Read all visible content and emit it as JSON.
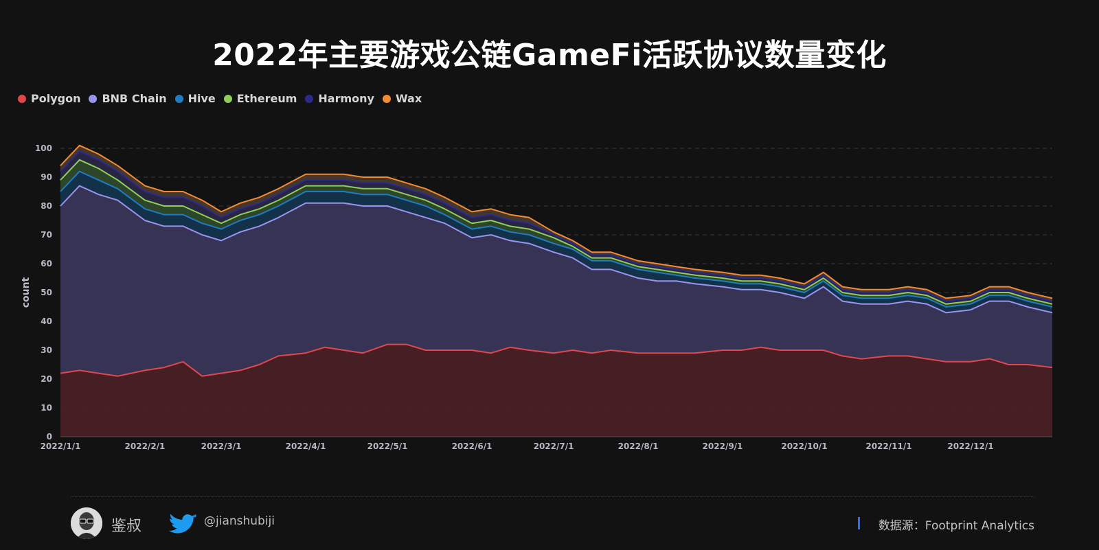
{
  "title": "2022年主要游戏公链GameFi活跃协议数量变化",
  "legend": [
    {
      "name": "Polygon",
      "color": "#e0484f"
    },
    {
      "name": "BNB Chain",
      "color": "#9b93f0"
    },
    {
      "name": "Hive",
      "color": "#1f7cc2"
    },
    {
      "name": "Ethereum",
      "color": "#8fce5a"
    },
    {
      "name": "Harmony",
      "color": "#2b2a8c"
    },
    {
      "name": "Wax",
      "color": "#f28b34"
    }
  ],
  "footer": {
    "author": "鉴叔",
    "author_icon": "avatar-icon",
    "twitter_icon": "twitter-icon",
    "twitter_handle": "@jianshubiji",
    "source": "数据源：Footprint  Analytics"
  },
  "chart_data": {
    "type": "area",
    "stacked": true,
    "title": "2022年主要游戏公链GameFi活跃协议数量变化",
    "xlabel": "",
    "ylabel": "count",
    "ylim": [
      0,
      100
    ],
    "yticks": [
      0,
      10,
      20,
      30,
      40,
      50,
      60,
      70,
      80,
      90,
      100
    ],
    "xticks": [
      "2022/1/1",
      "2022/2/1",
      "2022/3/1",
      "2022/4/1",
      "2022/5/1",
      "2022/6/1",
      "2022/7/1",
      "2022/8/1",
      "2022/9/1",
      "2022/10/1",
      "2022/11/1",
      "2022/12/1"
    ],
    "grid": true,
    "legend_position": "top-left",
    "x": [
      "2022/1/1",
      "2022/1/8",
      "2022/1/15",
      "2022/1/22",
      "2022/2/1",
      "2022/2/8",
      "2022/2/15",
      "2022/2/22",
      "2022/3/1",
      "2022/3/8",
      "2022/3/15",
      "2022/3/22",
      "2022/4/1",
      "2022/4/8",
      "2022/4/15",
      "2022/4/22",
      "2022/5/1",
      "2022/5/8",
      "2022/5/15",
      "2022/5/22",
      "2022/6/1",
      "2022/6/8",
      "2022/6/15",
      "2022/6/22",
      "2022/7/1",
      "2022/7/8",
      "2022/7/15",
      "2022/7/22",
      "2022/8/1",
      "2022/8/8",
      "2022/8/15",
      "2022/8/22",
      "2022/9/1",
      "2022/9/8",
      "2022/9/15",
      "2022/9/22",
      "2022/10/1",
      "2022/10/8",
      "2022/10/15",
      "2022/10/22",
      "2022/11/1",
      "2022/11/8",
      "2022/11/15",
      "2022/11/22",
      "2022/12/1",
      "2022/12/8",
      "2022/12/15",
      "2022/12/22",
      "2022/12/31"
    ],
    "series": [
      {
        "name": "Polygon",
        "values": [
          22,
          23,
          22,
          21,
          23,
          24,
          26,
          21,
          22,
          23,
          25,
          28,
          29,
          31,
          30,
          29,
          32,
          32,
          30,
          30,
          30,
          29,
          31,
          30,
          29,
          30,
          29,
          30,
          29,
          29,
          29,
          29,
          30,
          30,
          31,
          30,
          30,
          30,
          28,
          27,
          28,
          28,
          27,
          26,
          26,
          27,
          25,
          25,
          24
        ]
      },
      {
        "name": "BNB Chain",
        "values": [
          58,
          64,
          62,
          61,
          52,
          49,
          47,
          49,
          46,
          48,
          48,
          48,
          52,
          50,
          51,
          51,
          48,
          46,
          46,
          44,
          39,
          41,
          37,
          37,
          35,
          32,
          29,
          28,
          26,
          25,
          25,
          24,
          22,
          21,
          20,
          20,
          18,
          22,
          19,
          19,
          18,
          19,
          19,
          17,
          18,
          20,
          22,
          20,
          19
        ]
      },
      {
        "name": "Hive",
        "values": [
          5,
          5,
          5,
          4,
          4,
          4,
          4,
          4,
          4,
          4,
          4,
          4,
          4,
          4,
          4,
          4,
          4,
          4,
          4,
          3,
          3,
          3,
          3,
          3,
          3,
          3,
          3,
          3,
          3,
          3,
          2,
          2,
          2,
          2,
          2,
          2,
          2,
          2,
          2,
          2,
          2,
          2,
          2,
          2,
          2,
          2,
          2,
          2,
          2
        ]
      },
      {
        "name": "Ethereum",
        "values": [
          4,
          4,
          4,
          3,
          3,
          3,
          3,
          3,
          2,
          2,
          2,
          2,
          2,
          2,
          2,
          2,
          2,
          2,
          2,
          2,
          2,
          2,
          2,
          2,
          2,
          1,
          1,
          1,
          1,
          1,
          1,
          1,
          1,
          1,
          1,
          1,
          1,
          1,
          1,
          1,
          1,
          1,
          1,
          1,
          1,
          1,
          1,
          1,
          1
        ]
      },
      {
        "name": "Harmony",
        "values": [
          3,
          3,
          3,
          3,
          3,
          3,
          3,
          3,
          2,
          2,
          2,
          2,
          2,
          2,
          2,
          2,
          2,
          2,
          2,
          2,
          2,
          2,
          2,
          2,
          1,
          1,
          1,
          1,
          1,
          1,
          1,
          1,
          1,
          1,
          1,
          1,
          1,
          1,
          1,
          1,
          1,
          1,
          1,
          1,
          1,
          1,
          1,
          1,
          1
        ]
      },
      {
        "name": "Wax",
        "values": [
          2,
          2,
          2,
          2,
          2,
          2,
          2,
          2,
          2,
          2,
          2,
          2,
          2,
          2,
          2,
          2,
          2,
          2,
          2,
          2,
          2,
          2,
          2,
          2,
          1,
          1,
          1,
          1,
          1,
          1,
          1,
          1,
          1,
          1,
          1,
          1,
          1,
          1,
          1,
          1,
          1,
          1,
          1,
          1,
          1,
          1,
          1,
          1,
          1
        ]
      }
    ]
  }
}
